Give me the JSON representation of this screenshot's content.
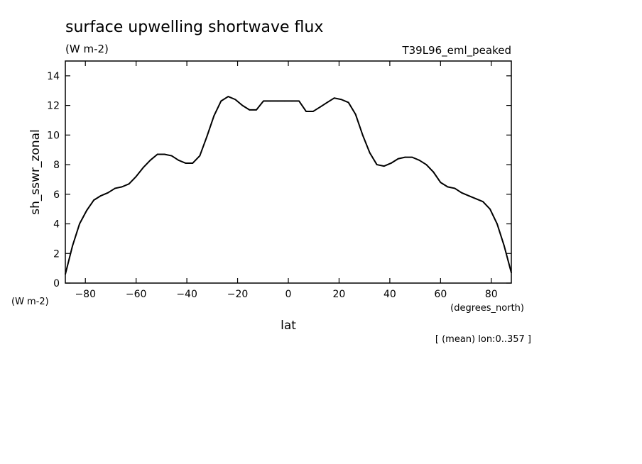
{
  "chart_data": {
    "type": "line",
    "title": "surface upwelling shortwave flux",
    "subtitle": "(W m-2)",
    "experiment": "T39L96_eml_peaked",
    "xlabel": "lat",
    "xunit": "(degrees_north)",
    "ylabel": "sh_sswr_zonal",
    "yunit": "(W m-2)",
    "footnote": "[ (mean) lon:0..357 ]",
    "xlim": [
      -87.9,
      87.9
    ],
    "ylim": [
      0,
      15
    ],
    "xticks": [
      -80,
      -60,
      -40,
      -20,
      0,
      20,
      40,
      60,
      80
    ],
    "yticks": [
      0,
      2,
      4,
      6,
      8,
      10,
      12,
      14
    ],
    "xtick_labels": [
      "−80",
      "−60",
      "−40",
      "−20",
      "0",
      "20",
      "40",
      "60",
      "80"
    ],
    "ytick_labels": [
      "0",
      "2",
      "4",
      "6",
      "8",
      "10",
      "12",
      "14"
    ],
    "grid": false,
    "line_color": "#000000",
    "series": [
      {
        "x": [
          -87.9,
          -85.1,
          -82.3,
          -79.5,
          -76.7,
          -73.9,
          -71.1,
          -68.3,
          -65.6,
          -62.8,
          -60.0,
          -57.2,
          -54.4,
          -51.6,
          -48.8,
          -46.0,
          -43.3,
          -40.5,
          -37.7,
          -34.9,
          -32.1,
          -29.3,
          -26.5,
          -23.7,
          -20.9,
          -18.1,
          -15.3,
          -12.6,
          -9.8,
          -7.0,
          -4.2,
          -1.4,
          1.4,
          4.2,
          7.0,
          9.8,
          12.6,
          15.3,
          18.1,
          20.9,
          23.7,
          26.5,
          29.3,
          32.1,
          34.9,
          37.7,
          40.5,
          43.3,
          46.0,
          48.8,
          51.6,
          54.4,
          57.2,
          60.0,
          62.8,
          65.6,
          68.3,
          71.1,
          73.9,
          76.7,
          79.5,
          82.3,
          85.1,
          87.9
        ],
        "values": [
          0.6,
          2.5,
          4.0,
          4.9,
          5.6,
          5.9,
          6.1,
          6.4,
          6.5,
          6.7,
          7.2,
          7.8,
          8.3,
          8.7,
          8.7,
          8.6,
          8.3,
          8.1,
          8.1,
          8.6,
          9.9,
          11.3,
          12.3,
          12.6,
          12.4,
          12.0,
          11.7,
          11.7,
          12.3,
          12.3,
          12.3,
          12.3,
          12.3,
          12.3,
          11.6,
          11.6,
          11.9,
          12.2,
          12.5,
          12.4,
          12.2,
          11.4,
          10.0,
          8.8,
          8.0,
          7.9,
          8.1,
          8.4,
          8.5,
          8.5,
          8.3,
          8.0,
          7.5,
          6.8,
          6.5,
          6.4,
          6.1,
          5.9,
          5.7,
          5.5,
          5.0,
          4.0,
          2.5,
          0.7
        ]
      }
    ]
  }
}
